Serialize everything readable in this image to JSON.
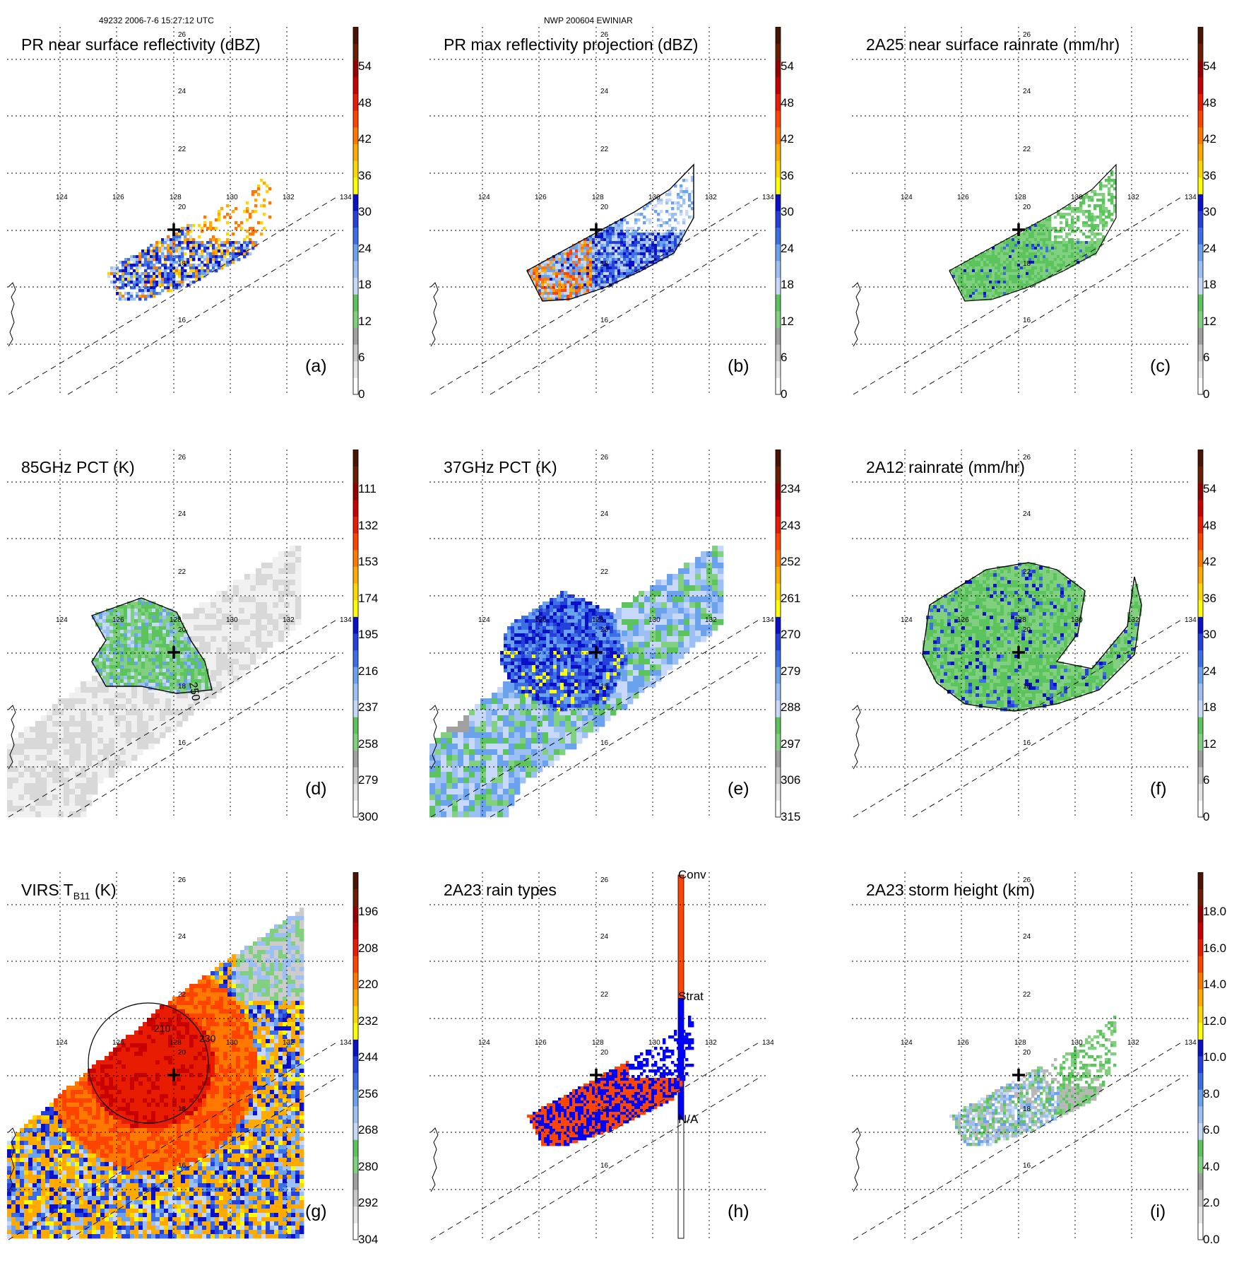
{
  "header": {
    "left": "49232 2006-7-6 15:27:12 UTC",
    "center": "NWP 200604 EWINIAR"
  },
  "grid": {
    "lon_labels": [
      "124",
      "126",
      "128",
      "130",
      "132",
      "134"
    ],
    "lat_labels": [
      "26",
      "24",
      "22",
      "20",
      "18",
      "16"
    ]
  },
  "palettes": {
    "standard": [
      "#ffffff",
      "#e6e6e6",
      "#c8c8c8",
      "#a0a0a0",
      "#80d080",
      "#5cc45c",
      "#c8d8f8",
      "#9cc0f4",
      "#6aa2ee",
      "#3c6ee6",
      "#2640dc",
      "#0a10c8",
      "#ffff00",
      "#ffd700",
      "#ffaa00",
      "#ff7800",
      "#ff4400",
      "#e81c00",
      "#c80000",
      "#960000",
      "#6e1e00",
      "#4a1400"
    ],
    "raintype": {
      "na": "#ffffff",
      "strat": "#0000ff",
      "conv": "#ff4500"
    }
  },
  "panels": [
    {
      "label": "(a)",
      "title": "PR near surface reflectivity (dBZ)",
      "ticks": [
        "0",
        "6",
        "12",
        "18",
        "24",
        "30",
        "36",
        "42",
        "48",
        "54"
      ]
    },
    {
      "label": "(b)",
      "title": "PR max reflectivity projection (dBZ)",
      "ticks": [
        "0",
        "6",
        "12",
        "18",
        "24",
        "30",
        "36",
        "42",
        "48",
        "54"
      ]
    },
    {
      "label": "(c)",
      "title": "2A25 near surface rainrate (mm/hr)",
      "ticks": [
        "0",
        "6",
        "12",
        "18",
        "24",
        "30",
        "36",
        "42",
        "48",
        "54"
      ]
    },
    {
      "label": "(d)",
      "title": "85GHz PCT (K)",
      "ticks": [
        "300",
        "279",
        "258",
        "237",
        "216",
        "195",
        "174",
        "153",
        "132",
        "111"
      ],
      "contour_label": "250"
    },
    {
      "label": "(e)",
      "title": "37GHz PCT (K)",
      "ticks": [
        "315",
        "306",
        "297",
        "288",
        "279",
        "270",
        "261",
        "252",
        "243",
        "234"
      ]
    },
    {
      "label": "(f)",
      "title": "2A12 rainrate (mm/hr)",
      "ticks": [
        "0",
        "6",
        "12",
        "18",
        "24",
        "30",
        "36",
        "42",
        "48",
        "54"
      ]
    },
    {
      "label": "(g)",
      "title_main": "VIRS T",
      "title_sub": "B11",
      "title_unit": " (K)",
      "ticks": [
        "304",
        "292",
        "280",
        "268",
        "256",
        "244",
        "232",
        "220",
        "208",
        "196"
      ],
      "contour_labels": [
        "210",
        "230"
      ]
    },
    {
      "label": "(h)",
      "title": "2A23 rain types",
      "ticks": [
        "N/A",
        "Strat",
        "Conv"
      ]
    },
    {
      "label": "(i)",
      "title": "2A23 storm height (km)",
      "ticks": [
        "0.0",
        "2.0",
        "4.0",
        "6.0",
        "8.0",
        "10.0",
        "12.0",
        "14.0",
        "16.0",
        "18.0"
      ]
    }
  ]
}
